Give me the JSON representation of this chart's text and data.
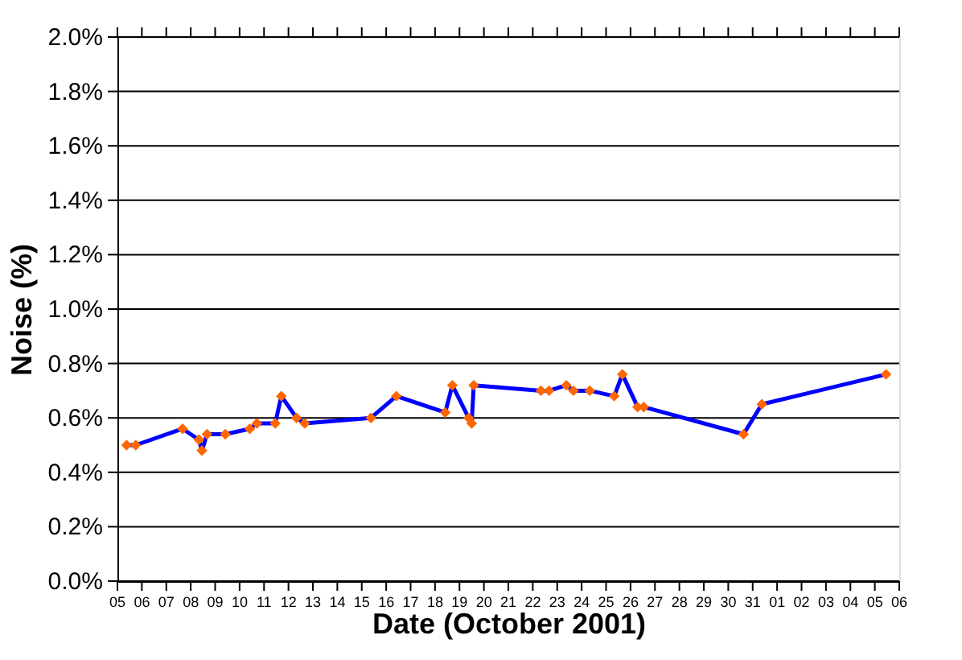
{
  "chart_data": {
    "type": "line",
    "xlabel": "Date (October 2001)",
    "ylabel": "Noise (%)",
    "x": [
      "2001-10-05T09:00",
      "2001-10-05T18:00",
      "2001-10-07T16:00",
      "2001-10-08T08:00",
      "2001-10-08T11:00",
      "2001-10-08T16:00",
      "2001-10-09T10:00",
      "2001-10-10T10:00",
      "2001-10-10T17:00",
      "2001-10-11T11:00",
      "2001-10-11T17:00",
      "2001-10-12T08:00",
      "2001-10-12T16:00",
      "2001-10-15T09:00",
      "2001-10-16T10:00",
      "2001-10-18T10:00",
      "2001-10-18T17:00",
      "2001-10-19T09:00",
      "2001-10-19T12:00",
      "2001-10-19T14:00",
      "2001-10-22T08:00",
      "2001-10-22T16:00",
      "2001-10-23T09:00",
      "2001-10-23T16:00",
      "2001-10-24T08:00",
      "2001-10-25T08:00",
      "2001-10-25T16:00",
      "2001-10-26T07:00",
      "2001-10-26T13:00",
      "2001-10-30T15:00",
      "2001-10-31T09:00",
      "2001-11-05T11:00"
    ],
    "series": [
      {
        "color": "#0000ff",
        "colors": [
          "#ff6600",
          "#ff6600",
          "#ff6600",
          "#ff6600",
          "#ff6600",
          "#ff6600",
          "#ff6600",
          "#ff6600",
          "#ff6600",
          "#ff6600",
          "#ff6600",
          "#ff6600",
          "#ff6600",
          "#ff6600",
          "#ff6600",
          "#ff6600",
          "#ff6600",
          "#ff6600",
          "#ff6600",
          "#ff6600",
          "#ff6600",
          "#ff6600",
          "#ff6600",
          "#ff6600",
          "#ff6600",
          "#ff6600",
          "#ff6600",
          "#ff6600",
          "#ff6600",
          "#ff6600",
          "#ff6600",
          "#ff6600"
        ],
        "values": [
          0.5,
          0.5,
          0.56,
          0.52,
          0.48,
          0.54,
          0.54,
          0.56,
          0.58,
          0.58,
          0.68,
          0.6,
          0.58,
          0.6,
          0.68,
          0.62,
          0.72,
          0.6,
          0.58,
          0.72,
          0.7,
          0.7,
          0.72,
          0.7,
          0.7,
          0.68,
          0.76,
          0.64,
          0.64,
          0.54,
          0.65,
          0.76
        ]
      }
    ],
    "marker": "diamond",
    "line_style": "solid",
    "grid": "y",
    "xlim": [
      "2001-10-05",
      "2001-11-06"
    ],
    "xticks": [
      {
        "value": "2001-10-05",
        "label": "05"
      },
      {
        "value": "2001-10-06",
        "label": "06"
      },
      {
        "value": "2001-10-07",
        "label": "07"
      },
      {
        "value": "2001-10-08",
        "label": "08"
      },
      {
        "value": "2001-10-09",
        "label": "09"
      },
      {
        "value": "2001-10-10",
        "label": "10"
      },
      {
        "value": "2001-10-11",
        "label": "11"
      },
      {
        "value": "2001-10-12",
        "label": "12"
      },
      {
        "value": "2001-10-13",
        "label": "13"
      },
      {
        "value": "2001-10-14",
        "label": "14"
      },
      {
        "value": "2001-10-15",
        "label": "15"
      },
      {
        "value": "2001-10-16",
        "label": "16"
      },
      {
        "value": "2001-10-17",
        "label": "17"
      },
      {
        "value": "2001-10-18",
        "label": "18"
      },
      {
        "value": "2001-10-19",
        "label": "19"
      },
      {
        "value": "2001-10-20",
        "label": "20"
      },
      {
        "value": "2001-10-21",
        "label": "21"
      },
      {
        "value": "2001-10-22",
        "label": "22"
      },
      {
        "value": "2001-10-23",
        "label": "23"
      },
      {
        "value": "2001-10-24",
        "label": "24"
      },
      {
        "value": "2001-10-25",
        "label": "25"
      },
      {
        "value": "2001-10-26",
        "label": "26"
      },
      {
        "value": "2001-10-27",
        "label": "27"
      },
      {
        "value": "2001-10-28",
        "label": "28"
      },
      {
        "value": "2001-10-29",
        "label": "29"
      },
      {
        "value": "2001-10-30",
        "label": "30"
      },
      {
        "value": "2001-10-31",
        "label": "31"
      },
      {
        "value": "2001-11-01",
        "label": "01"
      },
      {
        "value": "2001-11-02",
        "label": "02"
      },
      {
        "value": "2001-11-03",
        "label": "03"
      },
      {
        "value": "2001-11-04",
        "label": "04"
      },
      {
        "value": "2001-11-05",
        "label": "05"
      },
      {
        "value": "2001-11-06",
        "label": "06"
      }
    ],
    "ylim": [
      0,
      2.0
    ],
    "yticks": [
      {
        "value": 0,
        "label": "0.0%"
      },
      {
        "value": 0.2,
        "label": "0.2%"
      },
      {
        "value": 0.4,
        "label": "0.4%"
      },
      {
        "value": 0.6,
        "label": "0.6%"
      },
      {
        "value": 0.8,
        "label": "0.8%"
      },
      {
        "value": 1.0,
        "label": "1.0%"
      },
      {
        "value": 1.2,
        "label": "1.2%"
      },
      {
        "value": 1.4,
        "label": "1.4%"
      },
      {
        "value": 1.6,
        "label": "1.6%"
      },
      {
        "value": 1.8,
        "label": "1.8%"
      },
      {
        "value": 2.0,
        "label": "2.0%"
      }
    ]
  }
}
